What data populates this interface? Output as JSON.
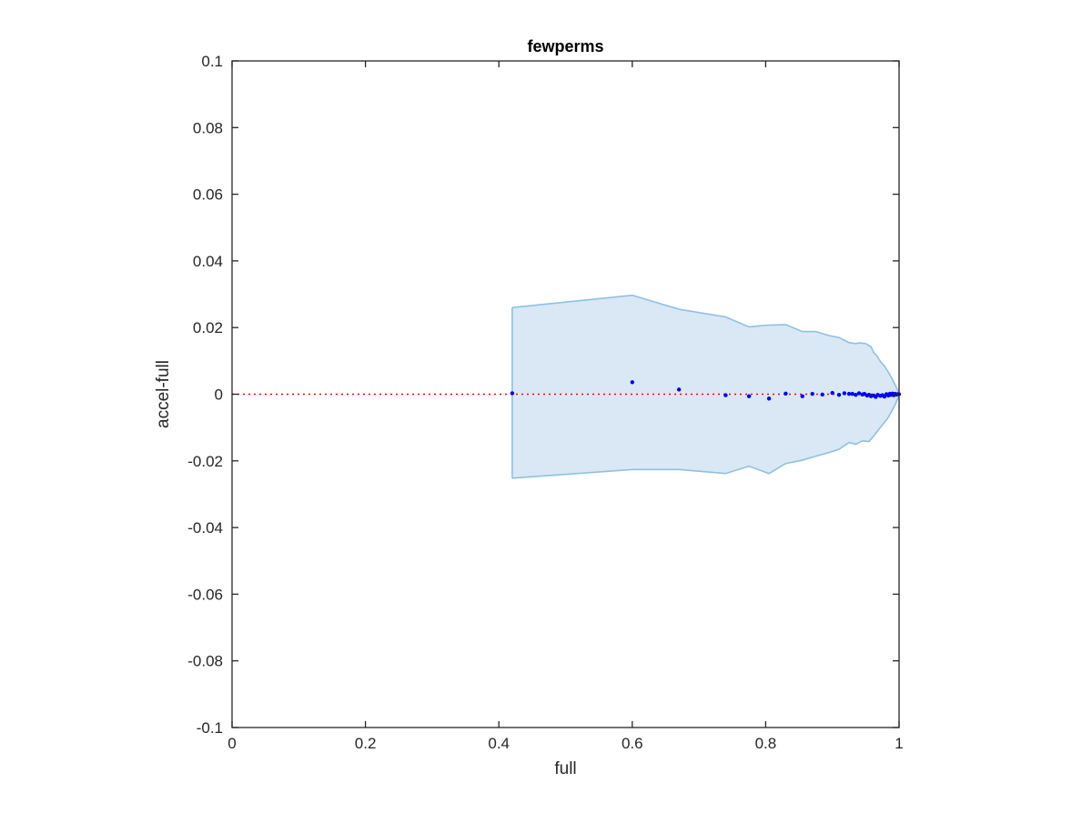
{
  "chart_data": {
    "type": "scatter",
    "title": "fewperms",
    "xlabel": "full",
    "ylabel": "accel-full",
    "xlim": [
      0,
      1
    ],
    "ylim": [
      -0.1,
      0.1
    ],
    "xticks": [
      0,
      0.2,
      0.4,
      0.6,
      0.8,
      1
    ],
    "xtick_labels": [
      "0",
      "0.2",
      "0.4",
      "0.6",
      "0.8",
      "1"
    ],
    "yticks": [
      -0.1,
      -0.08,
      -0.06,
      -0.04,
      -0.02,
      0,
      0.02,
      0.04,
      0.06,
      0.08,
      0.1
    ],
    "ytick_labels": [
      "-0.1",
      "-0.08",
      "-0.06",
      "-0.04",
      "-0.02",
      "0",
      "0.02",
      "0.04",
      "0.06",
      "0.08",
      "0.1"
    ],
    "grid": false,
    "reference_line": {
      "y": 0,
      "style": "dotted",
      "color": "#ff0000"
    },
    "band": {
      "color_fill": "#d9e8f4",
      "color_edge": "#8fc1e0",
      "upper": [
        [
          0.42,
          0.026
        ],
        [
          0.6,
          0.0297
        ],
        [
          0.67,
          0.0255
        ],
        [
          0.74,
          0.0232
        ],
        [
          0.775,
          0.0202
        ],
        [
          0.8,
          0.0207
        ],
        [
          0.83,
          0.0209
        ],
        [
          0.855,
          0.0188
        ],
        [
          0.875,
          0.0188
        ],
        [
          0.895,
          0.0176
        ],
        [
          0.91,
          0.017
        ],
        [
          0.925,
          0.0155
        ],
        [
          0.935,
          0.0152
        ],
        [
          0.94,
          0.0154
        ],
        [
          0.95,
          0.0152
        ],
        [
          0.958,
          0.0142
        ],
        [
          0.962,
          0.0125
        ],
        [
          0.967,
          0.0115
        ],
        [
          0.972,
          0.0098
        ],
        [
          0.978,
          0.0085
        ],
        [
          0.984,
          0.0066
        ],
        [
          0.99,
          0.0045
        ],
        [
          0.996,
          0.002
        ],
        [
          1.0,
          0.0004
        ]
      ],
      "lower": [
        [
          0.42,
          -0.0252
        ],
        [
          0.6,
          -0.0226
        ],
        [
          0.67,
          -0.0226
        ],
        [
          0.74,
          -0.0238
        ],
        [
          0.775,
          -0.0216
        ],
        [
          0.805,
          -0.0238
        ],
        [
          0.83,
          -0.0208
        ],
        [
          0.855,
          -0.0198
        ],
        [
          0.875,
          -0.0186
        ],
        [
          0.895,
          -0.0175
        ],
        [
          0.91,
          -0.0165
        ],
        [
          0.925,
          -0.0145
        ],
        [
          0.935,
          -0.015
        ],
        [
          0.945,
          -0.014
        ],
        [
          0.955,
          -0.0142
        ],
        [
          0.962,
          -0.0125
        ],
        [
          0.968,
          -0.011
        ],
        [
          0.975,
          -0.0092
        ],
        [
          0.982,
          -0.0075
        ],
        [
          0.988,
          -0.0055
        ],
        [
          0.994,
          -0.0032
        ],
        [
          1.0,
          -0.0004
        ]
      ]
    },
    "series": [
      {
        "color": "#0000ff",
        "points": [
          [
            0.42,
            0.0003
          ],
          [
            0.6,
            0.0036
          ],
          [
            0.67,
            0.0014
          ],
          [
            0.74,
            -0.0003
          ],
          [
            0.775,
            -0.0006
          ],
          [
            0.805,
            -0.0013
          ],
          [
            0.83,
            0.0002
          ],
          [
            0.855,
            -0.0006
          ],
          [
            0.87,
            0.0001
          ],
          [
            0.885,
            -0.0001
          ],
          [
            0.9,
            0.0004
          ],
          [
            0.91,
            -0.0002
          ],
          [
            0.918,
            0.0003
          ],
          [
            0.925,
            0.0001
          ],
          [
            0.93,
            0.0001
          ],
          [
            0.935,
            -0.0002
          ],
          [
            0.94,
            0.0003
          ],
          [
            0.945,
            -0.0001
          ],
          [
            0.948,
            0.0001
          ],
          [
            0.952,
            -0.0004
          ],
          [
            0.955,
            -0.0002
          ],
          [
            0.958,
            -0.0006
          ],
          [
            0.962,
            -0.0004
          ],
          [
            0.965,
            -0.0008
          ],
          [
            0.968,
            -0.0002
          ],
          [
            0.972,
            -0.0005
          ],
          [
            0.975,
            -0.0003
          ],
          [
            0.978,
            -0.0007
          ],
          [
            0.981,
            0.0
          ],
          [
            0.984,
            -0.0004
          ],
          [
            0.986,
            0.0001
          ],
          [
            0.988,
            -0.0002
          ],
          [
            0.99,
            0.0002
          ],
          [
            0.992,
            -0.0003
          ],
          [
            0.994,
            0.0001
          ],
          [
            0.996,
            -0.0001
          ],
          [
            0.998,
            0.0
          ],
          [
            1.0,
            0.0
          ]
        ]
      }
    ]
  }
}
